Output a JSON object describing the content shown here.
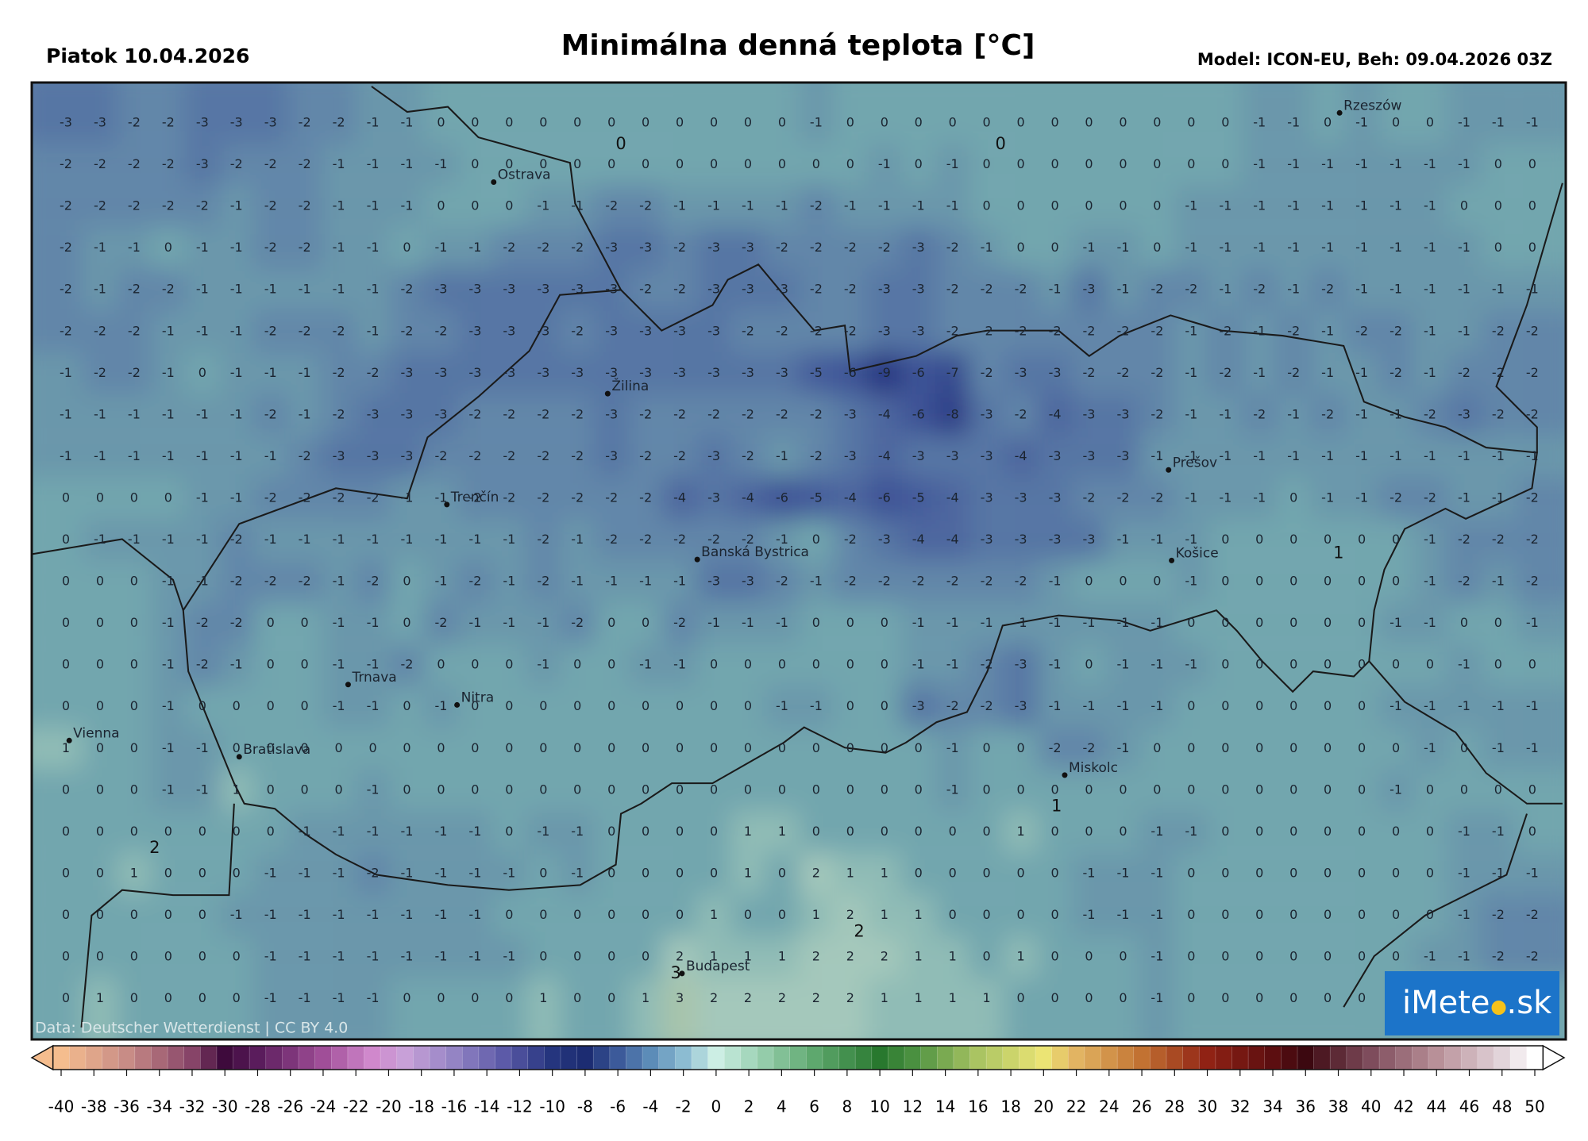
{
  "header": {
    "date": "Piatok 10.04.2026",
    "title": "Minimálna denná teplota [°C]",
    "model": "Model: ICON-EU, Beh: 09.04.2026 03Z"
  },
  "map": {
    "grid": [
      [
        -3,
        -3,
        -2,
        -2,
        -3,
        -3,
        -3,
        -2,
        -2,
        -1,
        -1,
        0,
        0,
        0,
        0,
        0,
        0,
        0,
        0,
        0,
        0,
        0,
        -1,
        0,
        0,
        0,
        0,
        0,
        0,
        0,
        0,
        0,
        0,
        0,
        0,
        -1,
        -1,
        0,
        -1,
        0,
        0,
        -1,
        -1,
        -1
      ],
      [
        -2,
        -2,
        -2,
        -2,
        -3,
        -2,
        -2,
        -2,
        -1,
        -1,
        -1,
        -1,
        0,
        0,
        0,
        0,
        0,
        0,
        0,
        0,
        0,
        0,
        0,
        0,
        -1,
        0,
        -1,
        0,
        0,
        0,
        0,
        0,
        0,
        0,
        0,
        -1,
        -1,
        -1,
        -1,
        -1,
        -1,
        -1,
        0,
        0
      ],
      [
        -2,
        -2,
        -2,
        -2,
        -2,
        -1,
        -2,
        -2,
        -1,
        -1,
        -1,
        0,
        0,
        0,
        -1,
        -1,
        -2,
        -2,
        -1,
        -1,
        -1,
        -1,
        -2,
        -1,
        -1,
        -1,
        -1,
        0,
        0,
        0,
        0,
        0,
        0,
        -1,
        -1,
        -1,
        -1,
        -1,
        -1,
        -1,
        -1,
        0,
        0,
        0
      ],
      [
        -2,
        -1,
        -1,
        0,
        -1,
        -1,
        -2,
        -2,
        -1,
        -1,
        0,
        -1,
        -1,
        -2,
        -2,
        -2,
        -3,
        -3,
        -2,
        -3,
        -3,
        -2,
        -2,
        -2,
        -2,
        -3,
        -2,
        -1,
        0,
        0,
        -1,
        -1,
        0,
        -1,
        -1,
        -1,
        -1,
        -1,
        -1,
        -1,
        -1,
        -1,
        0,
        0
      ],
      [
        -2,
        -1,
        -2,
        -2,
        -1,
        -1,
        -1,
        -1,
        -1,
        -1,
        -2,
        -3,
        -3,
        -3,
        -3,
        -3,
        -3,
        -2,
        -2,
        -3,
        -3,
        -3,
        -2,
        -2,
        -3,
        -3,
        -2,
        -2,
        -2,
        -1,
        -3,
        -1,
        -2,
        -2,
        -1,
        -2,
        -1,
        -2,
        -1,
        -1,
        -1,
        -1,
        -1,
        -1
      ],
      [
        -2,
        -2,
        -2,
        -1,
        -1,
        -1,
        -2,
        -2,
        -2,
        -1,
        -2,
        -2,
        -3,
        -3,
        -3,
        -2,
        -3,
        -3,
        -3,
        -3,
        -2,
        -2,
        -2,
        -2,
        -3,
        -3,
        -2,
        -2,
        -2,
        -2,
        -2,
        -2,
        -2,
        -1,
        -2,
        -1,
        -2,
        -1,
        -2,
        -2,
        -1,
        -1,
        -2,
        -2
      ],
      [
        -1,
        -2,
        -2,
        -1,
        0,
        -1,
        -1,
        -1,
        -2,
        -2,
        -3,
        -3,
        -3,
        -3,
        -3,
        -3,
        -3,
        -3,
        -3,
        -3,
        -3,
        -3,
        -5,
        -6,
        -9,
        -6,
        -7,
        -2,
        -3,
        -3,
        -2,
        -2,
        -2,
        -1,
        -2,
        -1,
        -2,
        -1,
        -1,
        -2,
        -1,
        -2,
        -2,
        -2
      ],
      [
        -1,
        -1,
        -1,
        -1,
        -1,
        -1,
        -2,
        -1,
        -2,
        -3,
        -3,
        -3,
        -2,
        -2,
        -2,
        -2,
        -3,
        -2,
        -2,
        -2,
        -2,
        -2,
        -2,
        -3,
        -4,
        -6,
        -8,
        -3,
        -2,
        -4,
        -3,
        -3,
        -2,
        -1,
        -1,
        -2,
        -1,
        -2,
        -1,
        -1,
        -2,
        -3,
        -2,
        -2
      ],
      [
        -1,
        -1,
        -1,
        -1,
        -1,
        -1,
        -1,
        -2,
        -3,
        -3,
        -3,
        -2,
        -2,
        -2,
        -2,
        -2,
        -3,
        -2,
        -2,
        -3,
        -2,
        -1,
        -2,
        -3,
        -4,
        -3,
        -3,
        -3,
        -4,
        -3,
        -3,
        -3,
        -1,
        -1,
        -1,
        -1,
        -1,
        -1,
        -1,
        -1,
        -1,
        -1,
        -1,
        -1
      ],
      [
        0,
        0,
        0,
        0,
        -1,
        -1,
        -2,
        -2,
        -2,
        -2,
        -1,
        -1,
        -2,
        -2,
        -2,
        -2,
        -2,
        -2,
        -4,
        -3,
        -4,
        -6,
        -5,
        -4,
        -6,
        -5,
        -4,
        -3,
        -3,
        -3,
        -2,
        -2,
        -2,
        -1,
        -1,
        -1,
        0,
        -1,
        -1,
        -2,
        -2,
        -1,
        -1,
        -2
      ],
      [
        0,
        -1,
        -1,
        -1,
        -1,
        -2,
        -1,
        -1,
        -1,
        -1,
        -1,
        -1,
        -1,
        -1,
        -2,
        -1,
        -2,
        -2,
        -2,
        -2,
        -2,
        -1,
        0,
        -2,
        -3,
        -4,
        -4,
        -3,
        -3,
        -3,
        -3,
        -1,
        -1,
        -1,
        0,
        0,
        0,
        0,
        0,
        0,
        -1,
        -2,
        -2,
        -2
      ],
      [
        0,
        0,
        0,
        -1,
        -1,
        -2,
        -2,
        -2,
        -1,
        -2,
        0,
        -1,
        -2,
        -1,
        -2,
        -1,
        -1,
        -1,
        -1,
        -3,
        -3,
        -2,
        -1,
        -2,
        -2,
        -2,
        -2,
        -2,
        -2,
        -1,
        0,
        0,
        0,
        -1,
        0,
        0,
        0,
        0,
        0,
        0,
        -1,
        -2,
        -1,
        -2
      ],
      [
        0,
        0,
        0,
        -1,
        -2,
        -2,
        0,
        0,
        -1,
        -1,
        0,
        -2,
        -1,
        -1,
        -1,
        -2,
        0,
        0,
        -2,
        -1,
        -1,
        -1,
        0,
        0,
        0,
        -1,
        -1,
        -1,
        -1,
        -1,
        -1,
        -1,
        -1,
        0,
        0,
        0,
        0,
        0,
        0,
        -1,
        -1,
        0,
        0,
        -1
      ],
      [
        0,
        0,
        0,
        -1,
        -2,
        -1,
        0,
        0,
        -1,
        -1,
        -2,
        0,
        0,
        0,
        -1,
        0,
        0,
        -1,
        -1,
        0,
        0,
        0,
        0,
        0,
        0,
        -1,
        -1,
        -2,
        -3,
        -1,
        0,
        -1,
        -1,
        -1,
        0,
        0,
        0,
        0,
        0,
        0,
        0,
        -1,
        0,
        0
      ],
      [
        0,
        0,
        0,
        -1,
        0,
        0,
        0,
        0,
        -1,
        -1,
        0,
        -1,
        0,
        0,
        0,
        0,
        0,
        0,
        0,
        0,
        0,
        -1,
        -1,
        0,
        0,
        -3,
        -2,
        -2,
        -3,
        -1,
        -1,
        -1,
        -1,
        0,
        0,
        0,
        0,
        0,
        0,
        -1,
        -1,
        -1,
        -1,
        -1
      ],
      [
        1,
        0,
        0,
        -1,
        -1,
        0,
        0,
        0,
        0,
        0,
        0,
        0,
        0,
        0,
        0,
        0,
        0,
        0,
        0,
        0,
        0,
        0,
        0,
        0,
        0,
        0,
        -1,
        0,
        0,
        -2,
        -2,
        -1,
        0,
        0,
        0,
        0,
        0,
        0,
        0,
        0,
        -1,
        0,
        -1,
        -1
      ],
      [
        0,
        0,
        0,
        -1,
        -1,
        1,
        0,
        0,
        0,
        -1,
        0,
        0,
        0,
        0,
        0,
        0,
        0,
        0,
        0,
        0,
        0,
        0,
        0,
        0,
        0,
        0,
        -1,
        0,
        0,
        0,
        0,
        0,
        0,
        0,
        0,
        0,
        0,
        0,
        0,
        -1,
        0,
        0,
        0,
        0
      ],
      [
        0,
        0,
        0,
        0,
        0,
        0,
        0,
        -1,
        -1,
        -1,
        -1,
        -1,
        -1,
        0,
        -1,
        -1,
        0,
        0,
        0,
        0,
        1,
        1,
        0,
        0,
        0,
        0,
        0,
        0,
        1,
        0,
        0,
        0,
        -1,
        -1,
        0,
        0,
        0,
        0,
        0,
        0,
        0,
        -1,
        -1,
        0
      ],
      [
        0,
        0,
        1,
        0,
        0,
        0,
        -1,
        -1,
        -1,
        -2,
        -1,
        -1,
        -1,
        -1,
        0,
        -1,
        0,
        0,
        0,
        0,
        1,
        0,
        2,
        1,
        1,
        0,
        0,
        0,
        0,
        0,
        -1,
        -1,
        -1,
        0,
        0,
        0,
        0,
        0,
        0,
        0,
        0,
        -1,
        -1,
        -1
      ],
      [
        0,
        0,
        0,
        0,
        0,
        -1,
        -1,
        -1,
        -1,
        -1,
        -1,
        -1,
        -1,
        0,
        0,
        0,
        0,
        0,
        0,
        1,
        0,
        0,
        1,
        2,
        1,
        1,
        0,
        0,
        0,
        0,
        -1,
        -1,
        -1,
        0,
        0,
        0,
        0,
        0,
        0,
        0,
        0,
        -1,
        -2,
        -2
      ],
      [
        0,
        0,
        0,
        0,
        0,
        0,
        -1,
        -1,
        -1,
        -1,
        -1,
        -1,
        -1,
        -1,
        0,
        0,
        0,
        0,
        2,
        1,
        1,
        1,
        2,
        2,
        2,
        1,
        1,
        0,
        1,
        0,
        0,
        0,
        -1,
        0,
        0,
        0,
        0,
        0,
        0,
        0,
        -1,
        -1,
        -2,
        -2
      ],
      [
        0,
        1,
        0,
        0,
        0,
        0,
        -1,
        -1,
        -1,
        -1,
        0,
        0,
        0,
        0,
        1,
        0,
        0,
        1,
        3,
        2,
        2,
        2,
        2,
        2,
        1,
        1,
        1,
        1,
        0,
        0,
        0,
        0,
        -1,
        0,
        0,
        0,
        0,
        0,
        0,
        0
      ]
    ],
    "contour_labels": [
      0,
      0,
      1,
      1,
      2,
      2,
      3
    ],
    "cities": [
      "Rzeszów",
      "Ostrava",
      "Žilina",
      "Prešov",
      "Trenčín",
      "Banská Bystrica",
      "Košice",
      "Trnava",
      "Nitra",
      "Vienna",
      "Bratislava",
      "Miskolc",
      "Budapest"
    ],
    "credit": "Data: Deutscher Wetterdienst | CC BY 4.0",
    "colors": [
      {
        "value": -9,
        "color": "#283480"
      },
      {
        "value": -6,
        "color": "#3c5296"
      },
      {
        "value": -4,
        "color": "#4d669f"
      },
      {
        "value": -3,
        "color": "#5776a4"
      },
      {
        "value": -2,
        "color": "#6286a9"
      },
      {
        "value": -1,
        "color": "#6a97ab"
      },
      {
        "value": 0,
        "color": "#72a6ae"
      },
      {
        "value": 1,
        "color": "#90bcb6"
      },
      {
        "value": 2,
        "color": "#a4c8bb"
      },
      {
        "value": 3,
        "color": "#a8c4ab"
      }
    ]
  },
  "colorbar": {
    "range": [
      -40,
      50
    ],
    "ticks": [
      -40,
      -38,
      -36,
      -34,
      -32,
      -30,
      -28,
      -26,
      -24,
      -22,
      -20,
      -18,
      -16,
      -14,
      -12,
      -10,
      -8,
      -6,
      -4,
      -2,
      0,
      2,
      4,
      6,
      8,
      10,
      12,
      14,
      16,
      18,
      20,
      22,
      24,
      26,
      28,
      30,
      32,
      34,
      36,
      38,
      40,
      42,
      44,
      46,
      48,
      50
    ],
    "colors": [
      {
        "value": -40,
        "color": "#f5bd8e"
      },
      {
        "value": -36,
        "color": "#c88c86"
      },
      {
        "value": -32,
        "color": "#874468"
      },
      {
        "value": -30,
        "color": "#3e0a3c"
      },
      {
        "value": -28,
        "color": "#5a1c5c"
      },
      {
        "value": -24,
        "color": "#a04e98"
      },
      {
        "value": -21,
        "color": "#d088cc"
      },
      {
        "value": -19,
        "color": "#c8a0d8"
      },
      {
        "value": -16,
        "color": "#9484c4"
      },
      {
        "value": -13,
        "color": "#5c5aa8"
      },
      {
        "value": -10,
        "color": "#25357e"
      },
      {
        "value": -8,
        "color": "#1c2c72"
      },
      {
        "value": -6,
        "color": "#3c5a9a"
      },
      {
        "value": -4,
        "color": "#5c8cb8"
      },
      {
        "value": -2,
        "color": "#8cbcd2"
      },
      {
        "value": 0,
        "color": "#cceee4"
      },
      {
        "value": 2,
        "color": "#a6d8be"
      },
      {
        "value": 6,
        "color": "#5ea86e"
      },
      {
        "value": 10,
        "color": "#28782e"
      },
      {
        "value": 12,
        "color": "#4a9040"
      },
      {
        "value": 16,
        "color": "#aac462"
      },
      {
        "value": 20,
        "color": "#ebe474"
      },
      {
        "value": 22,
        "color": "#e2b462"
      },
      {
        "value": 26,
        "color": "#c27232"
      },
      {
        "value": 30,
        "color": "#902214"
      },
      {
        "value": 34,
        "color": "#5c0e10"
      },
      {
        "value": 36,
        "color": "#3c0810"
      },
      {
        "value": 40,
        "color": "#7e4c5c"
      },
      {
        "value": 44,
        "color": "#b89098"
      },
      {
        "value": 48,
        "color": "#e2d4da"
      },
      {
        "value": 50,
        "color": "#ffffff"
      }
    ]
  },
  "logo": {
    "left": "iMete",
    "right": ".sk"
  }
}
